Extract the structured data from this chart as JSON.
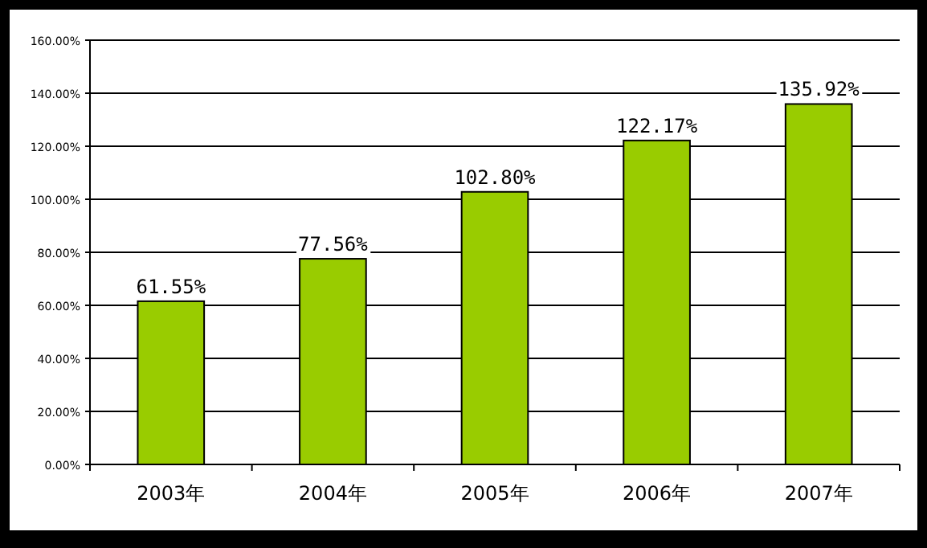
{
  "chart_data": {
    "type": "bar",
    "categories": [
      "2003年",
      "2004年",
      "2005年",
      "2006年",
      "2007年"
    ],
    "values": [
      61.55,
      77.56,
      102.8,
      122.17,
      135.92
    ],
    "value_labels": [
      "61.55%",
      "77.56%",
      "102.80%",
      "122.17%",
      "135.92%"
    ],
    "color": "#99cc00",
    "ylim": [
      0,
      160
    ],
    "yticks": [
      {
        "value": 0,
        "label": "0.00%"
      },
      {
        "value": 20,
        "label": "20.00%"
      },
      {
        "value": 40,
        "label": "40.00%"
      },
      {
        "value": 60,
        "label": "60.00%"
      },
      {
        "value": 80,
        "label": "80.00%"
      },
      {
        "value": 100,
        "label": "100.00%"
      },
      {
        "value": 120,
        "label": "120.00%"
      },
      {
        "value": 140,
        "label": "140.00%"
      },
      {
        "value": 160,
        "label": "160.00%"
      }
    ],
    "grid": "y"
  }
}
